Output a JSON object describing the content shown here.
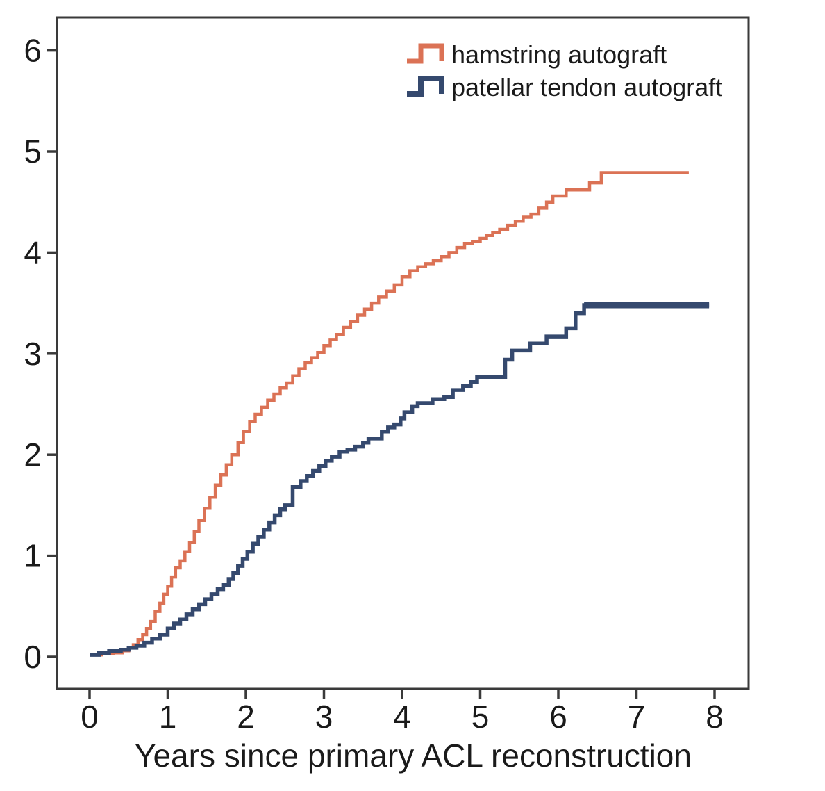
{
  "figure": {
    "background_color": "#ffffff",
    "axis_color": "#3a3a3a",
    "text_color": "#1a1a1a"
  },
  "chart_data": {
    "type": "line",
    "subtype": "step-cumulative-incidence",
    "title": "",
    "xlabel": "Years since primary ACL reconstruction",
    "ylabel": "",
    "xlim": [
      0,
      8
    ],
    "ylim": [
      0,
      6
    ],
    "xticks": [
      "0",
      "1",
      "2",
      "3",
      "4",
      "5",
      "6",
      "7",
      "8"
    ],
    "yticks": [
      "0",
      "1",
      "2",
      "3",
      "4",
      "5",
      "6"
    ],
    "grid": false,
    "legend_position": "top-right-inside",
    "series": [
      {
        "name": "hamstring autograft",
        "color": "#db7255",
        "line_width": 4.5,
        "thick_tail": false,
        "points": [
          [
            0.0,
            0.02
          ],
          [
            0.15,
            0.03
          ],
          [
            0.3,
            0.04
          ],
          [
            0.42,
            0.06
          ],
          [
            0.5,
            0.09
          ],
          [
            0.56,
            0.12
          ],
          [
            0.62,
            0.17
          ],
          [
            0.68,
            0.22
          ],
          [
            0.73,
            0.28
          ],
          [
            0.78,
            0.35
          ],
          [
            0.84,
            0.45
          ],
          [
            0.9,
            0.53
          ],
          [
            0.95,
            0.62
          ],
          [
            1.0,
            0.7
          ],
          [
            1.05,
            0.79
          ],
          [
            1.1,
            0.88
          ],
          [
            1.16,
            0.95
          ],
          [
            1.22,
            1.04
          ],
          [
            1.28,
            1.13
          ],
          [
            1.34,
            1.24
          ],
          [
            1.4,
            1.35
          ],
          [
            1.47,
            1.47
          ],
          [
            1.54,
            1.58
          ],
          [
            1.61,
            1.7
          ],
          [
            1.68,
            1.8
          ],
          [
            1.75,
            1.9
          ],
          [
            1.82,
            2.0
          ],
          [
            1.9,
            2.12
          ],
          [
            1.97,
            2.23
          ],
          [
            2.05,
            2.33
          ],
          [
            2.12,
            2.4
          ],
          [
            2.2,
            2.47
          ],
          [
            2.28,
            2.54
          ],
          [
            2.36,
            2.6
          ],
          [
            2.44,
            2.66
          ],
          [
            2.52,
            2.71
          ],
          [
            2.6,
            2.78
          ],
          [
            2.68,
            2.85
          ],
          [
            2.76,
            2.91
          ],
          [
            2.84,
            2.96
          ],
          [
            2.92,
            3.01
          ],
          [
            3.0,
            3.08
          ],
          [
            3.08,
            3.14
          ],
          [
            3.16,
            3.19
          ],
          [
            3.25,
            3.26
          ],
          [
            3.34,
            3.32
          ],
          [
            3.43,
            3.38
          ],
          [
            3.52,
            3.44
          ],
          [
            3.61,
            3.5
          ],
          [
            3.7,
            3.56
          ],
          [
            3.8,
            3.62
          ],
          [
            3.9,
            3.68
          ],
          [
            4.0,
            3.76
          ],
          [
            4.1,
            3.82
          ],
          [
            4.2,
            3.86
          ],
          [
            4.3,
            3.89
          ],
          [
            4.4,
            3.92
          ],
          [
            4.5,
            3.96
          ],
          [
            4.6,
            4.0
          ],
          [
            4.7,
            4.05
          ],
          [
            4.8,
            4.09
          ],
          [
            4.9,
            4.11
          ],
          [
            5.0,
            4.14
          ],
          [
            5.08,
            4.17
          ],
          [
            5.16,
            4.2
          ],
          [
            5.25,
            4.23
          ],
          [
            5.35,
            4.27
          ],
          [
            5.45,
            4.31
          ],
          [
            5.55,
            4.35
          ],
          [
            5.65,
            4.38
          ],
          [
            5.75,
            4.44
          ],
          [
            5.85,
            4.5
          ],
          [
            5.93,
            4.56
          ],
          [
            6.1,
            4.62
          ],
          [
            6.4,
            4.69
          ],
          [
            6.55,
            4.79
          ],
          [
            7.67,
            4.79
          ]
        ]
      },
      {
        "name": "patellar tendon autograft",
        "color": "#35496e",
        "line_width": 5.5,
        "thick_tail": true,
        "points": [
          [
            0.0,
            0.02
          ],
          [
            0.12,
            0.04
          ],
          [
            0.25,
            0.06
          ],
          [
            0.4,
            0.07
          ],
          [
            0.5,
            0.09
          ],
          [
            0.6,
            0.11
          ],
          [
            0.7,
            0.14
          ],
          [
            0.8,
            0.18
          ],
          [
            0.9,
            0.22
          ],
          [
            1.0,
            0.28
          ],
          [
            1.08,
            0.33
          ],
          [
            1.16,
            0.37
          ],
          [
            1.24,
            0.42
          ],
          [
            1.32,
            0.47
          ],
          [
            1.4,
            0.52
          ],
          [
            1.48,
            0.57
          ],
          [
            1.56,
            0.62
          ],
          [
            1.64,
            0.67
          ],
          [
            1.71,
            0.71
          ],
          [
            1.78,
            0.77
          ],
          [
            1.84,
            0.83
          ],
          [
            1.9,
            0.9
          ],
          [
            1.96,
            0.97
          ],
          [
            2.02,
            1.04
          ],
          [
            2.09,
            1.12
          ],
          [
            2.16,
            1.19
          ],
          [
            2.23,
            1.26
          ],
          [
            2.3,
            1.33
          ],
          [
            2.37,
            1.4
          ],
          [
            2.44,
            1.46
          ],
          [
            2.5,
            1.5
          ],
          [
            2.6,
            1.68
          ],
          [
            2.7,
            1.74
          ],
          [
            2.78,
            1.79
          ],
          [
            2.86,
            1.84
          ],
          [
            2.94,
            1.89
          ],
          [
            3.02,
            1.94
          ],
          [
            3.1,
            1.98
          ],
          [
            3.2,
            2.03
          ],
          [
            3.3,
            2.05
          ],
          [
            3.4,
            2.08
          ],
          [
            3.5,
            2.12
          ],
          [
            3.57,
            2.16
          ],
          [
            3.74,
            2.23
          ],
          [
            3.82,
            2.27
          ],
          [
            3.9,
            2.3
          ],
          [
            3.98,
            2.36
          ],
          [
            4.03,
            2.42
          ],
          [
            4.13,
            2.48
          ],
          [
            4.2,
            2.51
          ],
          [
            4.39,
            2.55
          ],
          [
            4.54,
            2.57
          ],
          [
            4.65,
            2.64
          ],
          [
            4.78,
            2.68
          ],
          [
            4.88,
            2.72
          ],
          [
            4.96,
            2.77
          ],
          [
            5.32,
            2.94
          ],
          [
            5.41,
            3.03
          ],
          [
            5.64,
            3.1
          ],
          [
            5.85,
            3.17
          ],
          [
            6.1,
            3.25
          ],
          [
            6.22,
            3.4
          ],
          [
            6.33,
            3.48
          ],
          [
            7.93,
            3.48
          ]
        ]
      }
    ]
  }
}
